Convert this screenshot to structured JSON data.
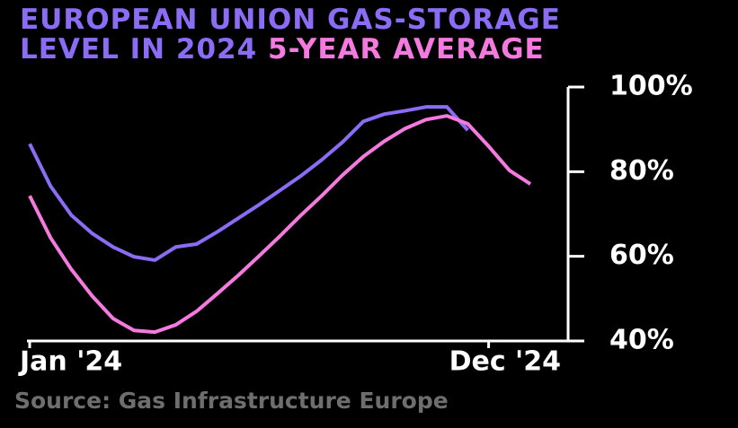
{
  "chart_data": {
    "type": "line",
    "source": "Source: Gas Infrastructure Europe",
    "categories": [
      "Jan '24",
      null,
      null,
      null,
      null,
      null,
      null,
      null,
      null,
      null,
      null,
      null,
      null,
      null,
      null,
      null,
      null,
      null,
      null,
      null,
      null,
      null,
      "Dec '24",
      null,
      null
    ],
    "series": [
      {
        "name": "EUROPEAN UNION GAS-STORAGE LEVEL IN 2024",
        "color": "#8b6cf5",
        "values": [
          86.6,
          76.6,
          69.7,
          65.4,
          62.2,
          59.9,
          59.1,
          62.2,
          62.9,
          65.8,
          69.0,
          72.2,
          75.6,
          79.0,
          82.8,
          87.0,
          91.9,
          93.6,
          94.4,
          95.3,
          95.3,
          89.8,
          null,
          null,
          null
        ]
      },
      {
        "name": "5-YEAR AVERAGE",
        "color": "#f57ae0",
        "values": [
          74.3,
          64.4,
          56.9,
          50.6,
          45.3,
          42.5,
          42.1,
          43.8,
          47.0,
          51.2,
          55.5,
          60.1,
          64.8,
          69.7,
          74.3,
          79.2,
          83.6,
          87.2,
          90.2,
          92.3,
          93.2,
          91.3,
          86.0,
          80.3,
          77.1
        ]
      }
    ],
    "ylim": [
      40,
      100
    ],
    "yticks": [
      {
        "value": 40,
        "label": "40%"
      },
      {
        "value": 60,
        "label": "60%"
      },
      {
        "value": 80,
        "label": "80%"
      },
      {
        "value": 100,
        "label": "100%"
      }
    ]
  }
}
